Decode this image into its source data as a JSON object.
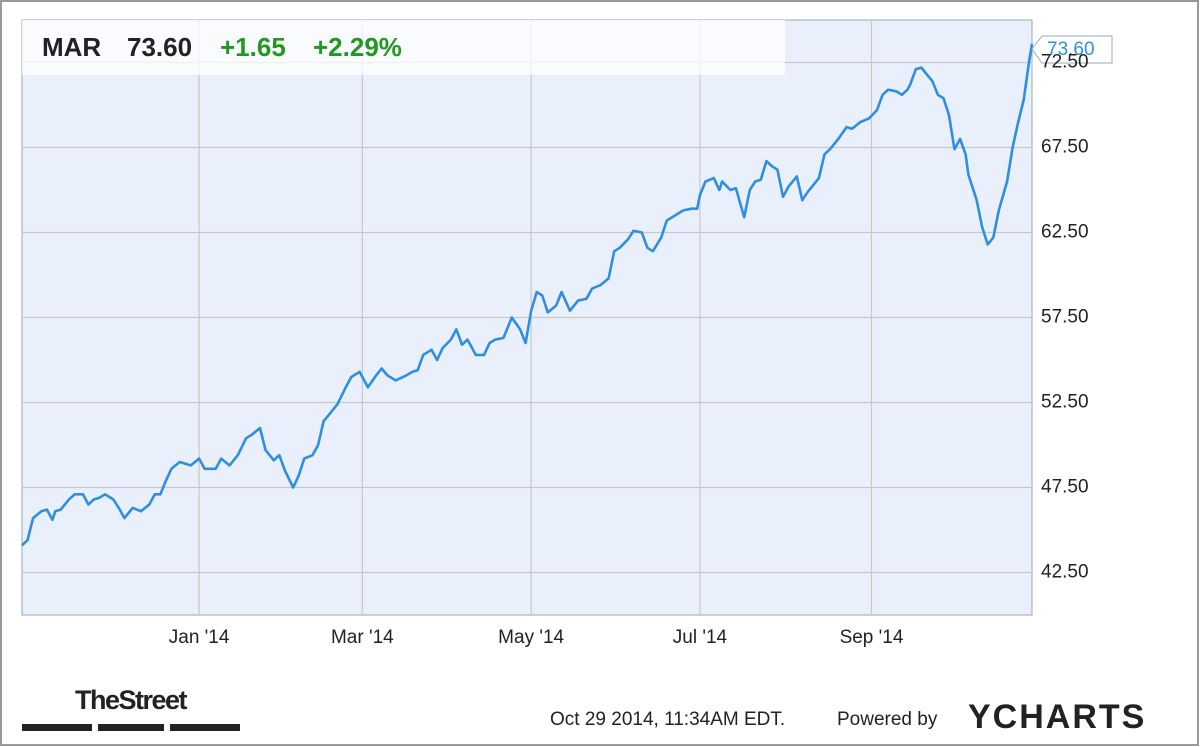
{
  "chart_data": {
    "type": "line",
    "price": "73.60",
    "change": "+1.65",
    "change_percent": "+2.29%",
    "x": [
      0,
      2,
      4,
      7,
      9,
      11,
      12,
      14,
      17,
      19,
      22,
      24,
      26,
      28,
      30,
      33,
      35,
      37,
      40,
      43,
      46,
      48,
      50,
      52,
      54,
      57,
      61,
      64,
      66,
      70,
      72,
      75,
      78,
      81,
      83,
      86,
      88,
      91,
      93,
      95,
      98,
      100,
      102,
      105,
      107,
      109,
      111,
      114,
      117,
      119,
      122,
      125,
      128,
      130,
      132,
      135,
      139,
      141,
      143,
      145,
      148,
      150,
      152,
      155,
      157,
      159,
      161,
      164,
      167,
      169,
      171,
      174,
      176,
      177,
      180,
      182,
      184,
      186,
      188,
      190,
      193,
      195,
      198,
      201,
      204,
      206,
      209,
      212,
      214,
      216,
      219,
      221,
      224,
      226,
      228,
      231,
      233,
      236,
      239,
      242,
      244,
      245,
      247,
      250,
      252,
      253,
      256,
      258,
      261,
      263,
      265,
      267,
      269,
      271,
      273,
      275,
      277,
      280,
      282,
      284,
      286,
      288,
      290,
      292,
      295,
      298,
      300,
      303,
      306,
      309,
      311,
      313,
      316,
      318,
      320,
      321,
      323,
      325,
      327,
      329,
      331,
      333,
      335,
      337,
      339,
      341,
      342,
      345,
      347,
      349,
      351,
      353,
      356,
      358,
      360,
      362,
      364,
      365
    ],
    "series": [
      {
        "name": "MAR",
        "color": "#2f8ee0",
        "values": [
          44.1,
          44.4,
          45.7,
          46.1,
          46.2,
          45.6,
          46.1,
          46.2,
          46.8,
          47.1,
          47.1,
          46.5,
          46.8,
          46.9,
          47.1,
          46.8,
          46.3,
          45.7,
          46.3,
          46.1,
          46.5,
          47.1,
          47.1,
          47.9,
          48.6,
          49.0,
          48.8,
          49.2,
          48.6,
          48.6,
          49.2,
          48.8,
          49.4,
          50.4,
          50.6,
          51.0,
          49.7,
          49.1,
          49.4,
          48.5,
          47.5,
          48.2,
          49.2,
          49.4,
          50.0,
          51.4,
          51.8,
          52.4,
          53.4,
          54.0,
          54.3,
          53.4,
          54.1,
          54.5,
          54.1,
          53.8,
          54.1,
          54.3,
          54.4,
          55.3,
          55.6,
          55.0,
          55.7,
          56.2,
          56.8,
          55.9,
          56.2,
          55.3,
          55.3,
          56.0,
          56.2,
          56.3,
          57.1,
          57.5,
          56.8,
          56.0,
          57.9,
          59.0,
          58.8,
          57.8,
          58.2,
          59.0,
          57.9,
          58.5,
          58.6,
          59.2,
          59.4,
          59.8,
          61.4,
          61.6,
          62.1,
          62.6,
          62.5,
          61.6,
          61.4,
          62.2,
          63.2,
          63.5,
          63.8,
          63.9,
          63.9,
          64.7,
          65.5,
          65.7,
          65.0,
          65.5,
          65.0,
          65.1,
          63.4,
          65.0,
          65.5,
          65.6,
          66.7,
          66.4,
          66.2,
          64.6,
          65.2,
          65.8,
          64.4,
          64.9,
          65.3,
          65.7,
          67.1,
          67.4,
          68.0,
          68.7,
          68.6,
          69.0,
          69.2,
          69.7,
          70.6,
          70.9,
          70.8,
          70.6,
          70.9,
          71.2,
          72.1,
          72.2,
          71.8,
          71.4,
          70.6,
          70.4,
          69.4,
          67.4,
          68.0,
          67.1,
          65.9,
          64.4,
          62.8,
          61.8,
          62.2,
          63.8,
          65.5,
          67.5,
          69.0,
          70.3,
          72.6,
          73.6
        ]
      }
    ],
    "xlim": [
      0,
      365
    ],
    "xticks": [
      {
        "value": 64,
        "label": "Jan '14"
      },
      {
        "value": 123,
        "label": "Mar '14"
      },
      {
        "value": 184,
        "label": "May '14"
      },
      {
        "value": 245,
        "label": "Jul '14"
      },
      {
        "value": 307,
        "label": "Sep '14"
      }
    ],
    "ylim": [
      40,
      75
    ],
    "yticks": [
      {
        "value": 42.5,
        "label": "42.50"
      },
      {
        "value": 47.5,
        "label": "47.50"
      },
      {
        "value": 52.5,
        "label": "52.50"
      },
      {
        "value": 57.5,
        "label": "57.50"
      },
      {
        "value": 62.5,
        "label": "62.50"
      },
      {
        "value": 67.5,
        "label": "67.50"
      },
      {
        "value": 72.5,
        "label": "72.50"
      }
    ],
    "grid": true,
    "footer": {
      "brand": "TheStreet",
      "timestamp": "Oct 29 2014, 11:34AM EDT.",
      "powered": "Powered by",
      "provider": "YCHARTS"
    }
  }
}
